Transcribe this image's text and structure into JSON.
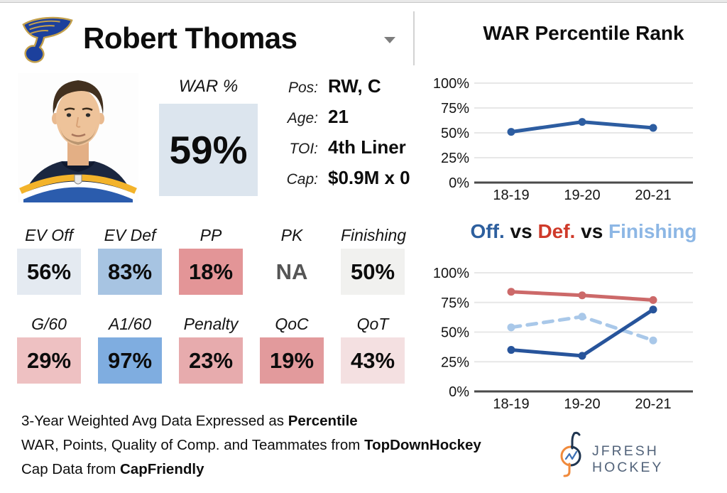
{
  "header": {
    "player_name": "Robert Thomas",
    "team_logo": "st-louis-blues-winged-note"
  },
  "war": {
    "label": "WAR %",
    "value": "59%",
    "box_color": "#dce5ee"
  },
  "info": [
    {
      "label": "Pos:",
      "value": "RW, C"
    },
    {
      "label": "Age:",
      "value": "21"
    },
    {
      "label": "TOI:",
      "value": "4th Liner"
    },
    {
      "label": "Cap:",
      "value": "$0.9M x 0"
    }
  ],
  "stats": {
    "rows": [
      [
        {
          "label": "EV Off",
          "value": "56%",
          "color": "#e4eaf1"
        },
        {
          "label": "EV Def",
          "value": "83%",
          "color": "#a7c4e2"
        },
        {
          "label": "PP",
          "value": "18%",
          "color": "#e39597"
        },
        {
          "label": "PK",
          "value": "NA",
          "color": "",
          "value_color": "#555555"
        },
        {
          "label": "Finishing",
          "value": "50%",
          "color": "#f1f1ef"
        }
      ],
      [
        {
          "label": "G/60",
          "value": "29%",
          "color": "#eec1c2"
        },
        {
          "label": "A1/60",
          "value": "97%",
          "color": "#7fade0"
        },
        {
          "label": "Penalty",
          "value": "23%",
          "color": "#e7abad"
        },
        {
          "label": "QoC",
          "value": "19%",
          "color": "#e29a9c"
        },
        {
          "label": "QoT",
          "value": "43%",
          "color": "#f4e0e1"
        }
      ]
    ]
  },
  "chart_data": [
    {
      "type": "line",
      "name": "war-percentile-chart",
      "title": "WAR Percentile Rank",
      "categories": [
        "18-19",
        "19-20",
        "20-21"
      ],
      "series": [
        {
          "name": "WAR",
          "color": "#2d5da1",
          "dashed": false,
          "values": [
            51,
            61,
            55
          ]
        }
      ],
      "ylim": [
        0,
        100
      ],
      "yticks": [
        "0%",
        "25%",
        "50%",
        "75%",
        "100%"
      ],
      "grid": true,
      "legend": "none"
    },
    {
      "type": "line",
      "name": "off-def-finishing-chart",
      "title_segments": [
        {
          "text": "Off.",
          "color": "#2d5f9e"
        },
        {
          "text": " vs ",
          "color": "#111111"
        },
        {
          "text": "Def.",
          "color": "#cf3a2a"
        },
        {
          "text": " vs ",
          "color": "#111111"
        },
        {
          "text": "Finishing",
          "color": "#8db7e5"
        }
      ],
      "categories": [
        "18-19",
        "19-20",
        "20-21"
      ],
      "series": [
        {
          "name": "Off.",
          "color": "#27549b",
          "dashed": false,
          "values": [
            35,
            30,
            69
          ]
        },
        {
          "name": "Def.",
          "color": "#cc6969",
          "dashed": false,
          "values": [
            84,
            81,
            77
          ]
        },
        {
          "name": "Finishing",
          "color": "#a9c8e9",
          "dashed": true,
          "values": [
            54,
            63,
            43
          ]
        }
      ],
      "ylim": [
        0,
        100
      ],
      "yticks": [
        "0%",
        "25%",
        "50%",
        "75%",
        "100%"
      ],
      "grid": true,
      "legend": "in-title"
    }
  ],
  "footer": {
    "lines": [
      {
        "text": "3-Year Weighted Avg Data Expressed as ",
        "bold": "Percentile"
      },
      {
        "text": "WAR, Points, Quality of Comp. and Teammates from ",
        "bold": "TopDownHockey"
      },
      {
        "text": "Cap Data from ",
        "bold": "CapFriendly"
      }
    ]
  },
  "branding": {
    "text": "JFRESH HOCKEY"
  }
}
